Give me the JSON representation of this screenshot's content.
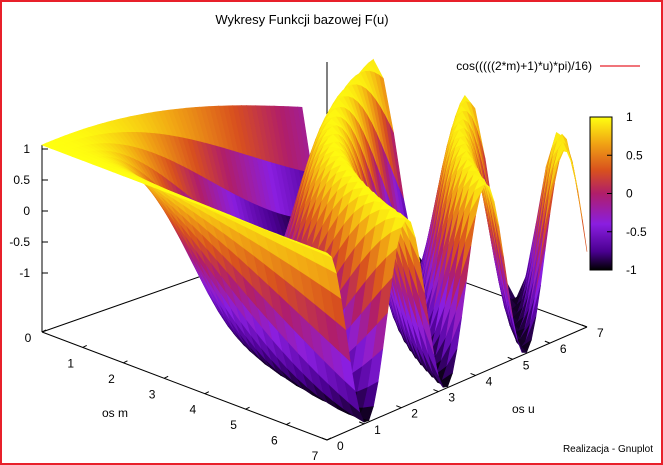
{
  "window": {
    "accent_color": "#e8202a"
  },
  "footer": {
    "credit": "Realizacja - Gnuplot"
  },
  "chart_data": {
    "type": "surface3d",
    "title": "Wykresy Funkcji bazowej F(u)",
    "xlabel": "os m",
    "ylabel": "os u",
    "zlabel": "",
    "xlim": [
      0,
      7
    ],
    "ylim": [
      0,
      7
    ],
    "zlim": [
      -1,
      1
    ],
    "x_ticks": [
      "0",
      "1",
      "2",
      "3",
      "4",
      "5",
      "6",
      "7"
    ],
    "y_ticks": [
      "0",
      "1",
      "2",
      "3",
      "4",
      "5",
      "6",
      "7"
    ],
    "z_ticks": [
      "1",
      "0.5",
      "0",
      "-0.5",
      "-1"
    ],
    "legend": {
      "position": "top-right",
      "entries": [
        {
          "label": "cos(((((2*m)+1)*u)*pi)/16)",
          "color": "#e8202a"
        }
      ]
    },
    "colorbar": {
      "range": [
        -1,
        1
      ],
      "ticks": [
        "1",
        "0.5",
        "0",
        "-0.5",
        "-1"
      ],
      "palette": [
        "#000000",
        "#5500aa",
        "#8a1ecf",
        "#c83250",
        "#e6781e",
        "#f5c80a",
        "#ffff00"
      ]
    },
    "function": "cos(((((2*m)+1)*u)*pi)/16)",
    "grid": false
  }
}
